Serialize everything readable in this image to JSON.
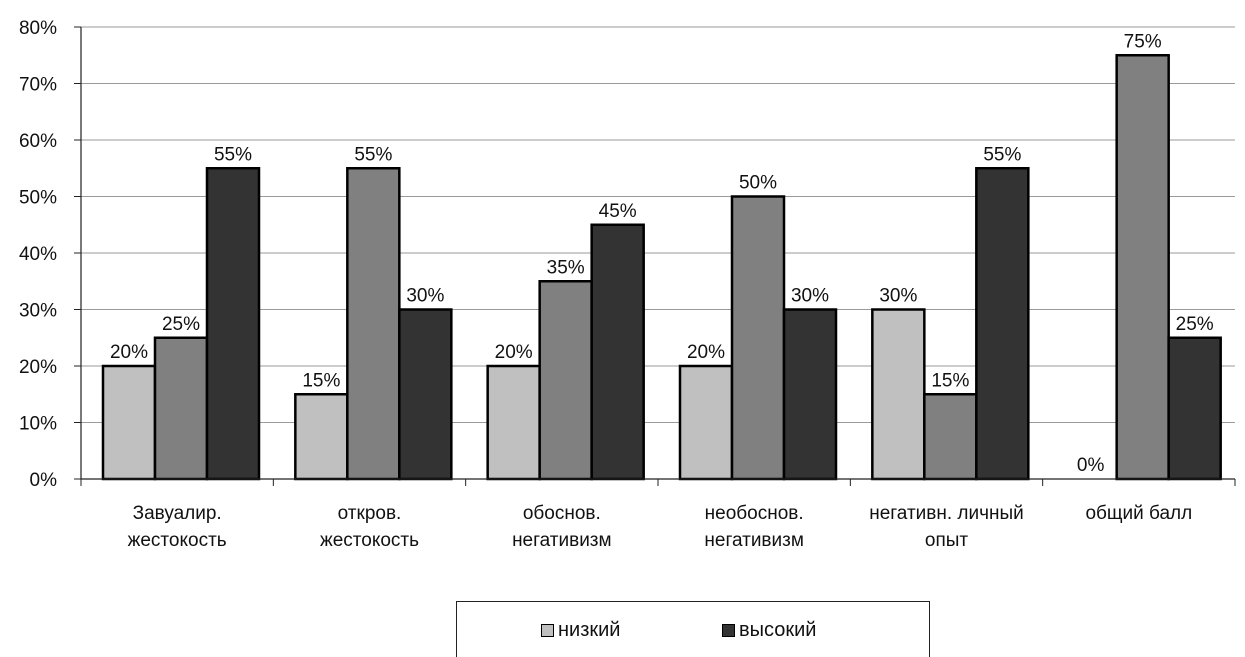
{
  "chart_data": {
    "type": "bar",
    "categories": [
      [
        "Завуалир.",
        "жестокость"
      ],
      [
        "откров.",
        "жестокость"
      ],
      [
        "обоснов.",
        "негативизм"
      ],
      [
        "необоснов.",
        "негативизм"
      ],
      [
        "негативн. личный",
        "опыт"
      ],
      [
        "общий балл"
      ]
    ],
    "series": [
      {
        "name": "низкий",
        "values": [
          20,
          15,
          20,
          20,
          30,
          0
        ],
        "color": "#c0c0c0"
      },
      {
        "name": "",
        "values": [
          25,
          55,
          35,
          50,
          15,
          75
        ],
        "color": "#808080"
      },
      {
        "name": "высокий",
        "values": [
          55,
          30,
          45,
          30,
          55,
          25
        ],
        "color": "#333333"
      }
    ],
    "value_format": "percent",
    "ylim": [
      0,
      80
    ],
    "yticks": [
      "0%",
      "10%",
      "20%",
      "30%",
      "40%",
      "50%",
      "60%",
      "70%",
      "80%"
    ],
    "grid": true,
    "legend_position": "bottom"
  },
  "legend": {
    "items": [
      {
        "label": "низкий",
        "color": "#c0c0c0"
      },
      {
        "label": "высокий",
        "color": "#333333"
      }
    ]
  }
}
